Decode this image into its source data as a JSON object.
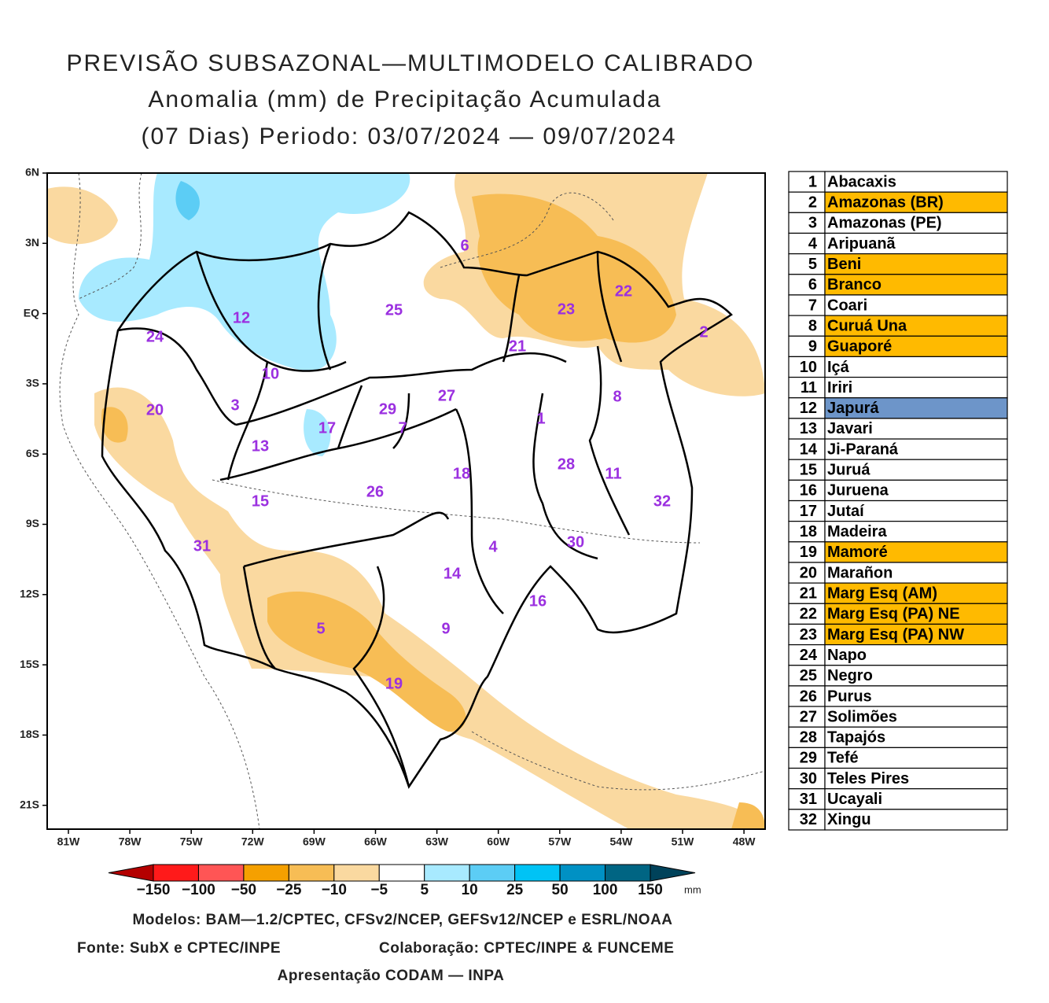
{
  "title": [
    "PREVISÃO SUBSAZONAL—MULTIMODELO CALIBRADO",
    "Anomalia (mm) de Precipitação Acumulada",
    "(07 Dias) Periodo: 03/07/2024 — 09/07/2024"
  ],
  "map": {
    "lat_labels": [
      "6N",
      "3N",
      "EQ",
      "3S",
      "6S",
      "9S",
      "12S",
      "15S",
      "18S",
      "21S"
    ],
    "lon_labels": [
      "81W",
      "78W",
      "75W",
      "72W",
      "69W",
      "66W",
      "63W",
      "60W",
      "57W",
      "54W",
      "51W",
      "48W"
    ],
    "basin_labels": [
      "6",
      "25",
      "23",
      "22",
      "2",
      "12",
      "24",
      "21",
      "10",
      "8",
      "27",
      "3",
      "20",
      "29",
      "1",
      "17",
      "7",
      "13",
      "28",
      "11",
      "18",
      "32",
      "26",
      "15",
      "30",
      "4",
      "31",
      "14",
      "16",
      "9",
      "5",
      "19"
    ]
  },
  "colorbar": {
    "colors": [
      "#b40000",
      "#ff1a1a",
      "#ff5555",
      "#f5a000",
      "#f7bd55",
      "#fad9a0",
      "#ffffff",
      "#a8eaff",
      "#5ccdf5",
      "#00c3f5",
      "#0091c4",
      "#006583",
      "#00425a"
    ],
    "labels": [
      "−150",
      "−100",
      "−50",
      "−25",
      "−10",
      "−5",
      "5",
      "10",
      "25",
      "50",
      "100",
      "150"
    ],
    "unit": "mm"
  },
  "footer": [
    "Modelos: BAM—1.2/CPTEC, CFSv2/NCEP, GEFSv12/NCEP e ESRL/NOAA",
    "Fonte: SubX e CPTEC/INPE",
    "Colaboração: CPTEC/INPE & FUNCEME",
    "Apresentação CODAM — INPA"
  ],
  "table": {
    "rows": [
      {
        "number": "1",
        "name": "Abacaxis",
        "color": "#ffffff"
      },
      {
        "number": "2",
        "name": "Amazonas (BR)",
        "color": "#ffba00"
      },
      {
        "number": "3",
        "name": "Amazonas (PE)",
        "color": "#ffffff"
      },
      {
        "number": "4",
        "name": "Aripuanã",
        "color": "#ffffff"
      },
      {
        "number": "5",
        "name": "Beni",
        "color": "#ffba00"
      },
      {
        "number": "6",
        "name": "Branco",
        "color": "#ffba00"
      },
      {
        "number": "7",
        "name": "Coari",
        "color": "#ffffff"
      },
      {
        "number": "8",
        "name": "Curuá Una",
        "color": "#ffba00"
      },
      {
        "number": "9",
        "name": "Guaporé",
        "color": "#ffba00"
      },
      {
        "number": "10",
        "name": "Içá",
        "color": "#ffffff"
      },
      {
        "number": "11",
        "name": "Iriri",
        "color": "#ffffff"
      },
      {
        "number": "12",
        "name": "Japurá",
        "color": "#6d95c9"
      },
      {
        "number": "13",
        "name": "Javari",
        "color": "#ffffff"
      },
      {
        "number": "14",
        "name": "Ji-Paraná",
        "color": "#ffffff"
      },
      {
        "number": "15",
        "name": "Juruá",
        "color": "#ffffff"
      },
      {
        "number": "16",
        "name": "Juruena",
        "color": "#ffffff"
      },
      {
        "number": "17",
        "name": "Jutaí",
        "color": "#ffffff"
      },
      {
        "number": "18",
        "name": "Madeira",
        "color": "#ffffff"
      },
      {
        "number": "19",
        "name": "Mamoré",
        "color": "#ffba00"
      },
      {
        "number": "20",
        "name": "Marañon",
        "color": "#ffffff"
      },
      {
        "number": "21",
        "name": "Marg Esq (AM)",
        "color": "#ffba00"
      },
      {
        "number": "22",
        "name": "Marg Esq (PA) NE",
        "color": "#ffba00"
      },
      {
        "number": "23",
        "name": "Marg Esq (PA) NW",
        "color": "#ffba00"
      },
      {
        "number": "24",
        "name": "Napo",
        "color": "#ffffff"
      },
      {
        "number": "25",
        "name": "Negro",
        "color": "#ffffff"
      },
      {
        "number": "26",
        "name": "Purus",
        "color": "#ffffff"
      },
      {
        "number": "27",
        "name": "Solimões",
        "color": "#ffffff"
      },
      {
        "number": "28",
        "name": "Tapajós",
        "color": "#ffffff"
      },
      {
        "number": "29",
        "name": "Tefé",
        "color": "#ffffff"
      },
      {
        "number": "30",
        "name": "Teles Pires",
        "color": "#ffffff"
      },
      {
        "number": "31",
        "name": "Ucayali",
        "color": "#ffffff"
      },
      {
        "number": "32",
        "name": "Xingu",
        "color": "#ffffff"
      }
    ]
  }
}
